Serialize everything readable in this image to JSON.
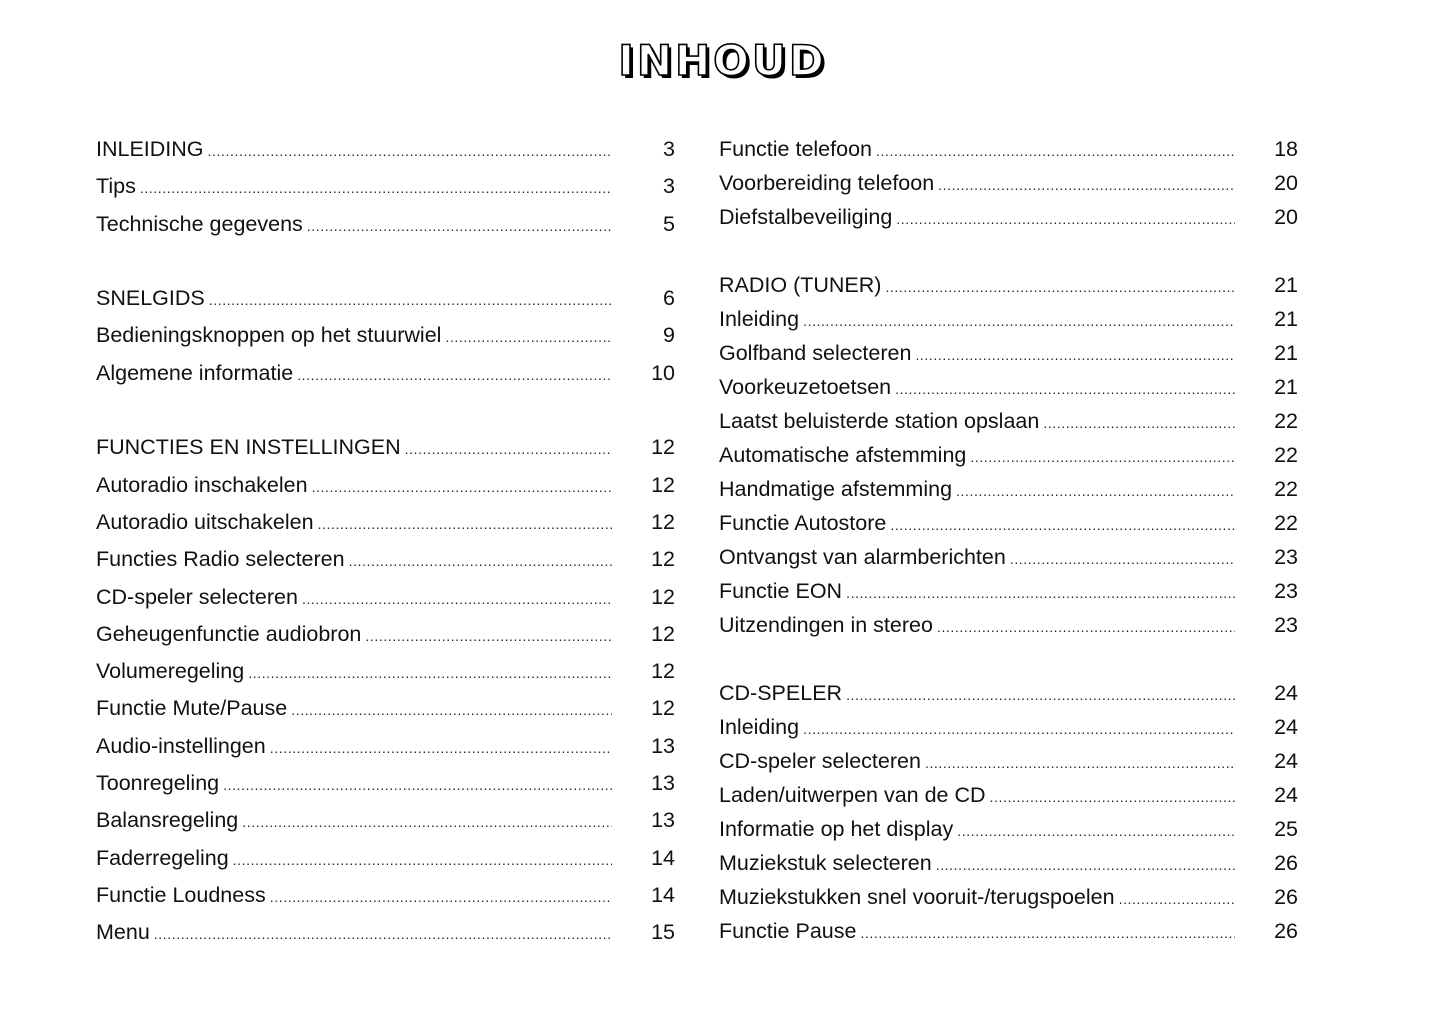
{
  "title": "INHOUD",
  "columns": [
    {
      "sections": [
        [
          {
            "title": "INLEIDING",
            "page": "3"
          },
          {
            "title": "Tips",
            "page": "3"
          },
          {
            "title": "Technische gegevens",
            "page": "5"
          }
        ],
        [
          {
            "title": "SNELGIDS",
            "page": "6"
          },
          {
            "title": "Bedieningsknoppen op het stuurwiel",
            "page": "9"
          },
          {
            "title": "Algemene informatie",
            "page": "10"
          }
        ],
        [
          {
            "title": "FUNCTIES EN INSTELLINGEN",
            "page": "12"
          },
          {
            "title": "Autoradio inschakelen",
            "page": "12"
          },
          {
            "title": "Autoradio uitschakelen",
            "page": "12"
          },
          {
            "title": "Functies Radio selecteren",
            "page": "12"
          },
          {
            "title": "CD-speler selecteren",
            "page": "12"
          },
          {
            "title": "Geheugenfunctie audiobron",
            "page": "12"
          },
          {
            "title": "Volumeregeling",
            "page": "12"
          },
          {
            "title": "Functie Mute/Pause",
            "page": "12"
          },
          {
            "title": "Audio-instellingen",
            "page": "13"
          },
          {
            "title": "Toonregeling",
            "page": "13"
          },
          {
            "title": "Balansregeling",
            "page": "13"
          },
          {
            "title": "Faderregeling",
            "page": "14"
          },
          {
            "title": "Functie Loudness",
            "page": "14"
          },
          {
            "title": "Menu",
            "page": "15"
          }
        ]
      ]
    },
    {
      "sections": [
        [
          {
            "title": "Functie telefoon",
            "page": "18"
          },
          {
            "title": "Voorbereiding telefoon",
            "page": "20"
          },
          {
            "title": "Diefstalbeveiliging",
            "page": "20"
          }
        ],
        [
          {
            "title": "RADIO (TUNER)",
            "page": "21"
          },
          {
            "title": "Inleiding",
            "page": "21"
          },
          {
            "title": "Golfband selecteren",
            "page": "21"
          },
          {
            "title": "Voorkeuzetoetsen",
            "page": "21"
          },
          {
            "title": "Laatst beluisterde station opslaan",
            "page": "22"
          },
          {
            "title": "Automatische afstemming",
            "page": "22"
          },
          {
            "title": "Handmatige afstemming",
            "page": "22"
          },
          {
            "title": "Functie Autostore",
            "page": "22"
          },
          {
            "title": "Ontvangst van alarmberichten",
            "page": "23"
          },
          {
            "title": "Functie EON",
            "page": "23"
          },
          {
            "title": "Uitzendingen in stereo",
            "page": "23"
          }
        ],
        [
          {
            "title": "CD-SPELER",
            "page": "24"
          },
          {
            "title": "Inleiding",
            "page": "24"
          },
          {
            "title": "CD-speler selecteren",
            "page": "24"
          },
          {
            "title": "Laden/uitwerpen van de CD",
            "page": "24"
          },
          {
            "title": "Informatie op het display",
            "page": "25"
          },
          {
            "title": "Muziekstuk selecteren",
            "page": "26"
          },
          {
            "title": "Muziekstukken snel vooruit-/terugspoelen",
            "page": "26"
          },
          {
            "title": "Functie Pause",
            "page": "26"
          }
        ]
      ]
    }
  ]
}
